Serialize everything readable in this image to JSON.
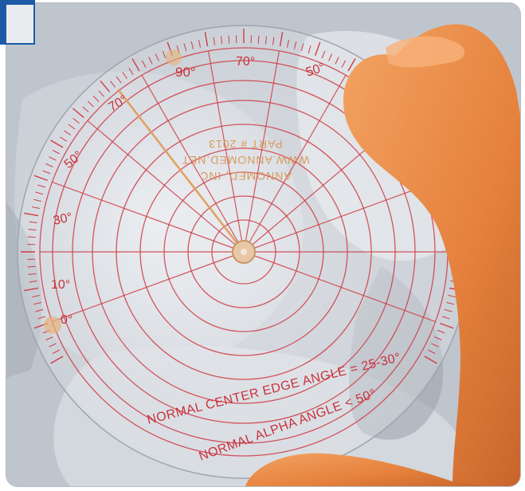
{
  "protractor": {
    "angle_labels": [
      {
        "key": "90",
        "text": "90°"
      },
      {
        "key": "70-top",
        "text": "70°"
      },
      {
        "key": "50-right",
        "text": "50°"
      },
      {
        "key": "70-left",
        "text": "70°"
      },
      {
        "key": "50-left",
        "text": "50°"
      },
      {
        "key": "30",
        "text": "30°"
      },
      {
        "key": "10",
        "text": "10°"
      },
      {
        "key": "0",
        "text": "0°"
      }
    ],
    "maker_lines": [
      "ANNOMED, INC",
      "WWW.ANNOMED.NET",
      "PART # 2013"
    ],
    "bottom_line_1": "NORMAL  CENTER EDGE ANGLE = 25-30°",
    "bottom_line_2": "NORMAL ALPHA ANGLE < 50°"
  },
  "colors": {
    "line_red": "#cf3b45",
    "text_red": "#c8323c",
    "maker_orange": "#d89a5a",
    "hand": "#e98a45",
    "frame_blue": "#1d5aa6"
  }
}
